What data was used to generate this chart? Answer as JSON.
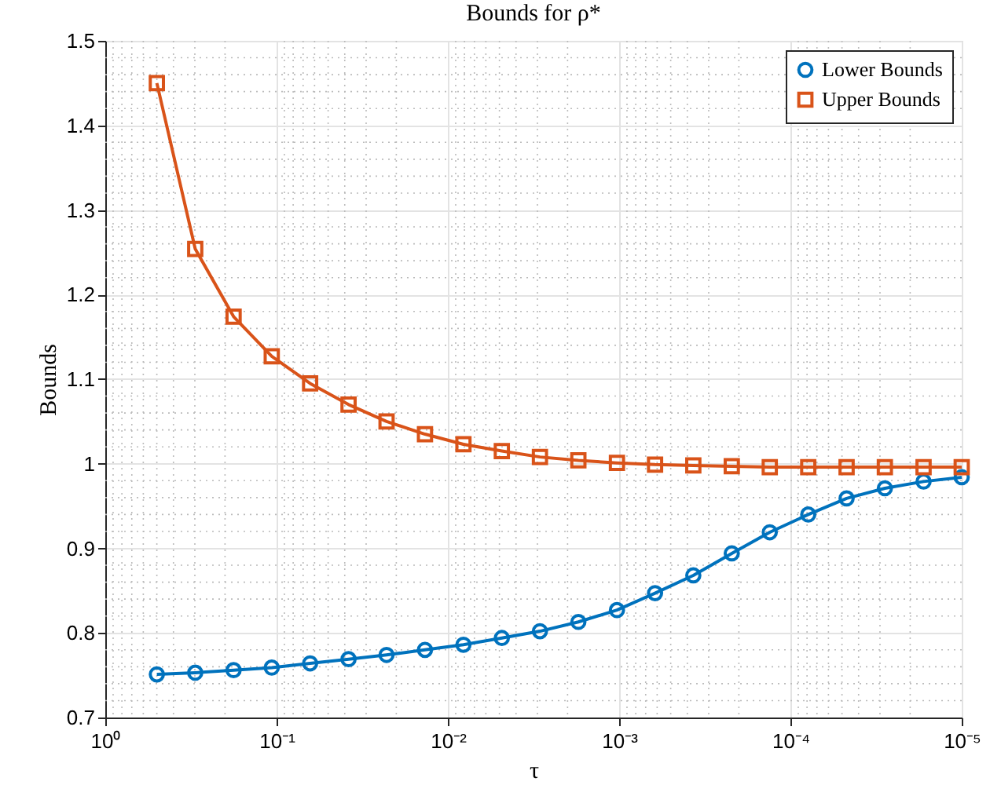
{
  "chart_data": {
    "type": "line",
    "title": "Bounds for ρ*",
    "xlabel": "τ",
    "ylabel": "Bounds",
    "x": [
      0.5,
      0.2985,
      0.1782,
      0.1067,
      0.0637,
      0.038,
      0.0228,
      0.0136,
      0.00811,
      0.00484,
      0.0029,
      0.00173,
      0.00103,
      0.000617,
      0.000369,
      0.00022,
      0.000132,
      7.87e-05,
      4.7e-05,
      2.81e-05,
      1.67e-05,
      1e-05
    ],
    "series": [
      {
        "name": "Lower Bounds",
        "color": "#0072bd",
        "marker": "circle",
        "values": [
          0.751,
          0.753,
          0.756,
          0.759,
          0.764,
          0.769,
          0.774,
          0.78,
          0.786,
          0.794,
          0.802,
          0.813,
          0.827,
          0.847,
          0.868,
          0.894,
          0.919,
          0.94,
          0.959,
          0.971,
          0.979,
          0.984
        ]
      },
      {
        "name": "Upper Bounds",
        "color": "#d95319",
        "marker": "square",
        "values": [
          1.45,
          1.254,
          1.174,
          1.127,
          1.095,
          1.07,
          1.05,
          1.035,
          1.023,
          1.015,
          1.008,
          1.004,
          1.001,
          0.999,
          0.998,
          0.997,
          0.996,
          0.996,
          0.996,
          0.996,
          0.996,
          0.996
        ]
      }
    ],
    "log": "x",
    "xlim": [
      1,
      1e-05
    ],
    "xticks": [
      {
        "value": 1,
        "label": "10⁰"
      },
      {
        "value": 0.1,
        "label": "10⁻¹"
      },
      {
        "value": 0.01,
        "label": "10⁻²"
      },
      {
        "value": 0.001,
        "label": "10⁻³"
      },
      {
        "value": 0.0001,
        "label": "10⁻⁴"
      },
      {
        "value": 1e-05,
        "label": "10⁻⁵"
      }
    ],
    "ylim": [
      0.7,
      1.5
    ],
    "yticks": [
      0.7,
      0.8,
      0.9,
      1,
      1.1,
      1.2,
      1.3,
      1.4,
      1.5
    ],
    "grid": true,
    "legend": "top right"
  }
}
